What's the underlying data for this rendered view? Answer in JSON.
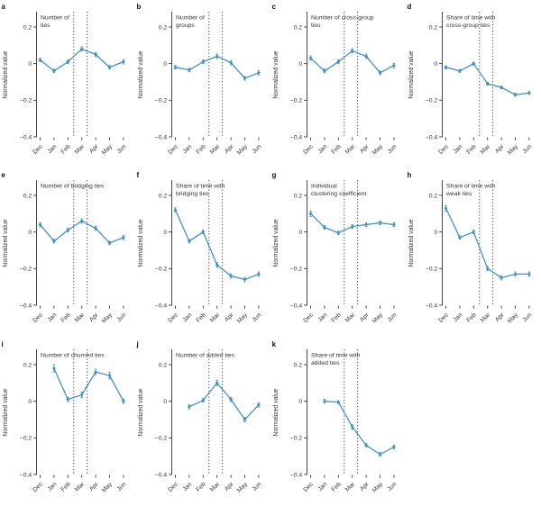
{
  "figure": {
    "ylabel": "Normalized value",
    "x_labels": [
      "Dec",
      "Jan",
      "Feb",
      "Mar",
      "Apr",
      "May",
      "Jun"
    ],
    "ytick_labels": [
      "0.2",
      "0",
      "−0.2",
      "−0.4"
    ],
    "yticks": [
      0.2,
      0,
      -0.2,
      -0.4
    ],
    "ylim": [
      -0.4,
      0.28
    ],
    "line_color": "#3b8ec6",
    "dotted_line_color": "#4d4d4d",
    "axis_color": "#333333",
    "dashed_x_month_index": [
      2.42,
      3.38
    ]
  },
  "chart_data": [
    {
      "type": "line",
      "letter": "a",
      "title_lines": [
        "Number of",
        "ties"
      ],
      "categories": [
        "Dec",
        "Jan",
        "Feb",
        "Mar",
        "Apr",
        "May",
        "Jun"
      ],
      "values": [
        0.02,
        -0.04,
        0.01,
        0.08,
        0.05,
        -0.02,
        0.01
      ],
      "errors": [
        0.01,
        0.01,
        0.01,
        0.012,
        0.012,
        0.01,
        0.012
      ],
      "ylabel": "Normalized value",
      "ylim": [
        -0.4,
        0.28
      ],
      "yticks": [
        0.2,
        0,
        -0.2,
        -0.4
      ],
      "vlines_month_index": [
        2.42,
        3.38
      ],
      "legend": false
    },
    {
      "type": "line",
      "letter": "b",
      "title_lines": [
        "Number of",
        "groups"
      ],
      "categories": [
        "Dec",
        "Jan",
        "Feb",
        "Mar",
        "Apr",
        "May",
        "Jun"
      ],
      "values": [
        -0.02,
        -0.035,
        0.01,
        0.04,
        0.005,
        -0.08,
        -0.05
      ],
      "errors": [
        0.01,
        0.01,
        0.01,
        0.012,
        0.012,
        0.01,
        0.012
      ],
      "ylabel": "Normalized value",
      "ylim": [
        -0.4,
        0.28
      ],
      "yticks": [
        0.2,
        0,
        -0.2,
        -0.4
      ],
      "vlines_month_index": [
        2.42,
        3.38
      ],
      "legend": false
    },
    {
      "type": "line",
      "letter": "c",
      "title_lines": [
        "Number of cross-group",
        "ties"
      ],
      "categories": [
        "Dec",
        "Jan",
        "Feb",
        "Mar",
        "Apr",
        "May",
        "Jun"
      ],
      "values": [
        0.03,
        -0.04,
        0.01,
        0.07,
        0.04,
        -0.05,
        -0.01
      ],
      "errors": [
        0.012,
        0.01,
        0.01,
        0.012,
        0.012,
        0.01,
        0.012
      ],
      "ylabel": "Normalized value",
      "ylim": [
        -0.4,
        0.28
      ],
      "yticks": [
        0.2,
        0,
        -0.2,
        -0.4
      ],
      "vlines_month_index": [
        2.42,
        3.38
      ],
      "legend": false
    },
    {
      "type": "line",
      "letter": "d",
      "title_lines": [
        "Share of time with",
        "cross-group ties"
      ],
      "categories": [
        "Dec",
        "Jan",
        "Feb",
        "Mar",
        "Apr",
        "May",
        "Jun"
      ],
      "values": [
        -0.02,
        -0.04,
        0.0,
        -0.11,
        -0.13,
        -0.17,
        -0.16
      ],
      "errors": [
        0.008,
        0.008,
        0.008,
        0.008,
        0.008,
        0.008,
        0.008
      ],
      "ylabel": "Normalized value",
      "ylim": [
        -0.4,
        0.28
      ],
      "yticks": [
        0.2,
        0,
        -0.2,
        -0.4
      ],
      "vlines_month_index": [
        2.42,
        3.38
      ],
      "legend": false
    },
    {
      "type": "line",
      "letter": "e",
      "title_lines": [
        "Number of bridging ties"
      ],
      "categories": [
        "Dec",
        "Jan",
        "Feb",
        "Mar",
        "Apr",
        "May",
        "Jun"
      ],
      "values": [
        0.04,
        -0.05,
        0.01,
        0.06,
        0.02,
        -0.06,
        -0.03
      ],
      "errors": [
        0.012,
        0.01,
        0.01,
        0.012,
        0.012,
        0.01,
        0.012
      ],
      "ylabel": "Normalized value",
      "ylim": [
        -0.4,
        0.28
      ],
      "yticks": [
        0.2,
        0,
        -0.2,
        -0.4
      ],
      "vlines_month_index": [
        2.42,
        3.38
      ],
      "legend": false
    },
    {
      "type": "line",
      "letter": "f",
      "title_lines": [
        "Share of time with",
        "bridging ties"
      ],
      "categories": [
        "Dec",
        "Jan",
        "Feb",
        "Mar",
        "Apr",
        "May",
        "Jun"
      ],
      "values": [
        0.12,
        -0.05,
        0.0,
        -0.18,
        -0.24,
        -0.26,
        -0.23
      ],
      "errors": [
        0.012,
        0.01,
        0.01,
        0.012,
        0.012,
        0.012,
        0.012
      ],
      "ylabel": "Normalized value",
      "ylim": [
        -0.4,
        0.28
      ],
      "yticks": [
        0.2,
        0,
        -0.2,
        -0.4
      ],
      "vlines_month_index": [
        2.42,
        3.38
      ],
      "legend": false
    },
    {
      "type": "line",
      "letter": "g",
      "title_lines": [
        "Individual",
        "clustering coefficient"
      ],
      "categories": [
        "Dec",
        "Jan",
        "Feb",
        "Mar",
        "Apr",
        "May",
        "Jun"
      ],
      "values": [
        0.1,
        0.025,
        -0.005,
        0.03,
        0.04,
        0.05,
        0.04
      ],
      "errors": [
        0.015,
        0.01,
        0.01,
        0.01,
        0.01,
        0.01,
        0.01
      ],
      "ylabel": "Normalized value",
      "ylim": [
        -0.4,
        0.28
      ],
      "yticks": [
        0.2,
        0,
        -0.2,
        -0.4
      ],
      "vlines_month_index": [
        2.42,
        3.38
      ],
      "legend": false
    },
    {
      "type": "line",
      "letter": "h",
      "title_lines": [
        "Share of time with",
        "weak ties"
      ],
      "categories": [
        "Dec",
        "Jan",
        "Feb",
        "Mar",
        "Apr",
        "May",
        "Jun"
      ],
      "values": [
        0.13,
        -0.03,
        0.0,
        -0.2,
        -0.25,
        -0.23,
        -0.23
      ],
      "errors": [
        0.015,
        0.01,
        0.01,
        0.012,
        0.012,
        0.012,
        0.012
      ],
      "ylabel": "Normalized value",
      "ylim": [
        -0.4,
        0.28
      ],
      "yticks": [
        0.2,
        0,
        -0.2,
        -0.4
      ],
      "vlines_month_index": [
        2.42,
        3.38
      ],
      "legend": false
    },
    {
      "type": "line",
      "letter": "i",
      "title_lines": [
        "Number of churned ties"
      ],
      "categories": [
        "Dec",
        "Jan",
        "Feb",
        "Mar",
        "Apr",
        "May",
        "Jun"
      ],
      "values": [
        null,
        0.18,
        0.01,
        0.035,
        0.16,
        0.14,
        0.0
      ],
      "errors": [
        null,
        0.02,
        0.012,
        0.015,
        0.015,
        0.018,
        0.012
      ],
      "ylabel": "Normalized value",
      "ylim": [
        -0.4,
        0.28
      ],
      "yticks": [
        0.2,
        0,
        -0.2,
        -0.4
      ],
      "vlines_month_index": [
        2.42,
        3.38
      ],
      "legend": false
    },
    {
      "type": "line",
      "letter": "j",
      "title_lines": [
        "Number of added ties"
      ],
      "categories": [
        "Dec",
        "Jan",
        "Feb",
        "Mar",
        "Apr",
        "May",
        "Jun"
      ],
      "values": [
        null,
        -0.03,
        0.005,
        0.1,
        0.01,
        -0.1,
        -0.02
      ],
      "errors": [
        null,
        0.012,
        0.01,
        0.014,
        0.012,
        0.012,
        0.012
      ],
      "ylabel": "Normalized value",
      "ylim": [
        -0.4,
        0.28
      ],
      "yticks": [
        0.2,
        0,
        -0.2,
        -0.4
      ],
      "vlines_month_index": [
        2.42,
        3.38
      ],
      "legend": false
    },
    {
      "type": "line",
      "letter": "k",
      "title_lines": [
        "Share of time with",
        "added ties"
      ],
      "categories": [
        "Dec",
        "Jan",
        "Feb",
        "Mar",
        "Apr",
        "May",
        "Jun"
      ],
      "values": [
        null,
        0.0,
        -0.005,
        -0.14,
        -0.24,
        -0.29,
        -0.25
      ],
      "errors": [
        null,
        0.01,
        0.008,
        0.012,
        0.01,
        0.01,
        0.01
      ],
      "ylabel": "Normalized value",
      "ylim": [
        -0.4,
        0.28
      ],
      "yticks": [
        0.2,
        0,
        -0.2,
        -0.4
      ],
      "vlines_month_index": [
        2.42,
        3.38
      ],
      "legend": false
    }
  ]
}
